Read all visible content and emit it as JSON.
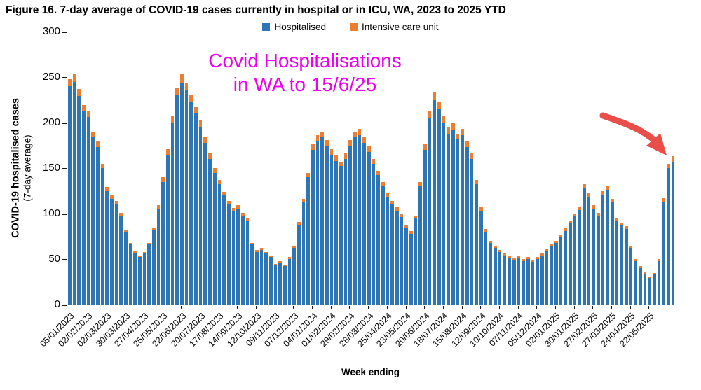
{
  "figure": {
    "title": "Figure 16. 7-day average of COVID-19 cases currently in hospital or in ICU, WA, 2023 to 2025 YTD"
  },
  "legend": {
    "items": [
      {
        "label": "Hospitalised",
        "color": "#2E75B6"
      },
      {
        "label": "Intensive care unit",
        "color": "#ED7D31"
      }
    ]
  },
  "annotation": {
    "line1": "Covid Hospitalisations",
    "line2": "in WA to 15/6/25",
    "color": "#EE00EE"
  },
  "arrow": {
    "color": "#EA4E48"
  },
  "axes": {
    "y_title_line1": "COVID-19 hospitalised cases",
    "y_title_line2": "(7-day average)",
    "x_title": "Week ending",
    "y_ticks": [
      0,
      50,
      100,
      150,
      200,
      250,
      300
    ],
    "y_max": 300
  },
  "chart_data": {
    "type": "bar",
    "stacked": true,
    "title": "Figure 16. 7-day average of COVID-19 cases currently in hospital or in ICU, WA, 2023 to 2025 YTD",
    "xlabel": "Week ending",
    "ylabel": "COVID-19 hospitalised cases (7-day average)",
    "ylim": [
      0,
      300
    ],
    "grid": false,
    "legend_position": "top",
    "bars_per_label": 4,
    "x_tick_labels": [
      "05/01/2023",
      "02/02/2023",
      "02/03/2023",
      "30/03/2023",
      "27/04/2023",
      "25/05/2023",
      "22/06/2023",
      "20/07/2023",
      "17/08/2023",
      "14/09/2023",
      "12/10/2023",
      "09/11/2023",
      "07/12/2023",
      "04/01/2024",
      "01/02/2024",
      "29/02/2024",
      "28/03/2024",
      "25/04/2024",
      "23/05/2024",
      "20/06/2024",
      "18/07/2024",
      "15/08/2024",
      "12/09/2024",
      "10/10/2024",
      "07/11/2024",
      "05/12/2024",
      "02/01/2025",
      "30/01/2025",
      "27/02/2025",
      "27/03/2025",
      "24/04/2025",
      "22/05/2025"
    ],
    "series": [
      {
        "name": "Hospitalised",
        "color": "#2E75B6",
        "values": [
          240,
          245,
          229,
          212,
          206,
          184,
          173,
          150,
          125,
          116,
          110,
          98,
          79,
          66,
          57,
          52,
          56,
          66,
          82,
          105,
          135,
          165,
          200,
          230,
          244,
          236,
          222,
          210,
          195,
          178,
          160,
          145,
          132,
          120,
          110,
          102,
          105,
          98,
          92,
          66,
          58,
          60,
          56,
          52,
          43,
          46,
          42,
          50,
          62,
          88,
          112,
          140,
          170,
          180,
          184,
          175,
          165,
          158,
          152,
          160,
          175,
          184,
          186,
          178,
          168,
          155,
          142,
          130,
          118,
          110,
          103,
          96,
          85,
          78,
          95,
          130,
          170,
          205,
          225,
          215,
          200,
          188,
          192,
          182,
          186,
          173,
          160,
          132,
          103,
          80,
          68,
          62,
          58,
          54,
          51,
          49,
          51,
          48,
          50,
          47,
          50,
          54,
          59,
          64,
          68,
          74,
          81,
          89,
          97,
          104,
          128,
          118,
          105,
          98,
          121,
          126,
          112,
          92,
          87,
          83,
          62,
          48,
          40,
          34,
          29,
          33,
          48,
          113,
          150,
          157
        ]
      },
      {
        "name": "Intensive care unit",
        "color": "#ED7D31",
        "values": [
          8,
          9,
          8,
          7,
          7,
          6,
          6,
          5,
          4,
          4,
          4,
          3,
          3,
          2,
          2,
          2,
          2,
          2,
          3,
          4,
          5,
          6,
          7,
          8,
          9,
          8,
          8,
          7,
          7,
          6,
          6,
          5,
          5,
          4,
          4,
          4,
          4,
          3,
          3,
          2,
          2,
          2,
          2,
          2,
          2,
          2,
          2,
          2,
          2,
          3,
          4,
          5,
          6,
          6,
          6,
          6,
          6,
          6,
          5,
          6,
          6,
          6,
          7,
          6,
          6,
          5,
          5,
          5,
          4,
          4,
          4,
          3,
          3,
          3,
          3,
          5,
          6,
          7,
          8,
          8,
          7,
          7,
          7,
          6,
          7,
          6,
          6,
          5,
          4,
          3,
          2,
          2,
          2,
          2,
          2,
          2,
          2,
          2,
          2,
          2,
          2,
          2,
          2,
          2,
          2,
          3,
          3,
          3,
          3,
          4,
          4,
          4,
          4,
          3,
          4,
          4,
          4,
          3,
          3,
          3,
          2,
          2,
          2,
          2,
          2,
          2,
          2,
          4,
          5,
          6
        ]
      }
    ]
  }
}
